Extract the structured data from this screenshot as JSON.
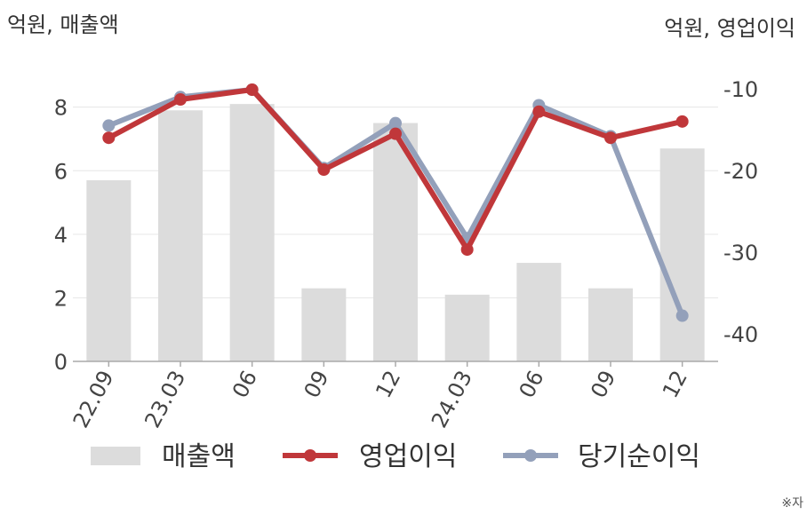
{
  "chart_data": {
    "type": "bar+line",
    "left_axis_unit": "억원, 매출액",
    "right_axis_unit": "억원, 영업이익",
    "categories": [
      "22.09",
      "23.03",
      "06",
      "09",
      "12",
      "24.03",
      "06",
      "09",
      "12"
    ],
    "bar_series": {
      "name": "매출액",
      "values": [
        5.7,
        7.9,
        8.1,
        2.3,
        7.5,
        2.1,
        3.1,
        2.3,
        6.7
      ]
    },
    "line_series": [
      {
        "name": "영업이익",
        "values": [
          -16.0,
          -11.3,
          -10.1,
          -19.9,
          -15.5,
          -29.7,
          -12.8,
          -16.0,
          -14.0
        ]
      },
      {
        "name": "당기순이익",
        "values": [
          -14.5,
          -11.0,
          -10.1,
          -19.7,
          -14.2,
          -28.3,
          -12.0,
          -15.8,
          -37.8
        ]
      }
    ],
    "y_left": {
      "range": [
        0,
        9.5
      ],
      "ticks": [
        "0",
        "2",
        "4",
        "6",
        "8"
      ]
    },
    "y_right": {
      "range": [
        -43.4,
        -6.4
      ],
      "ticks": [
        "-10",
        "-20",
        "-30",
        "-40"
      ]
    },
    "grid": true,
    "legend_position": "bottom",
    "colors": {
      "bar": "#dcdcdc",
      "operating": "#c0373a",
      "net": "#93a0ba",
      "grid": "#e6e6e6",
      "axis": "#aaaaaa"
    }
  },
  "footnote": "※자"
}
